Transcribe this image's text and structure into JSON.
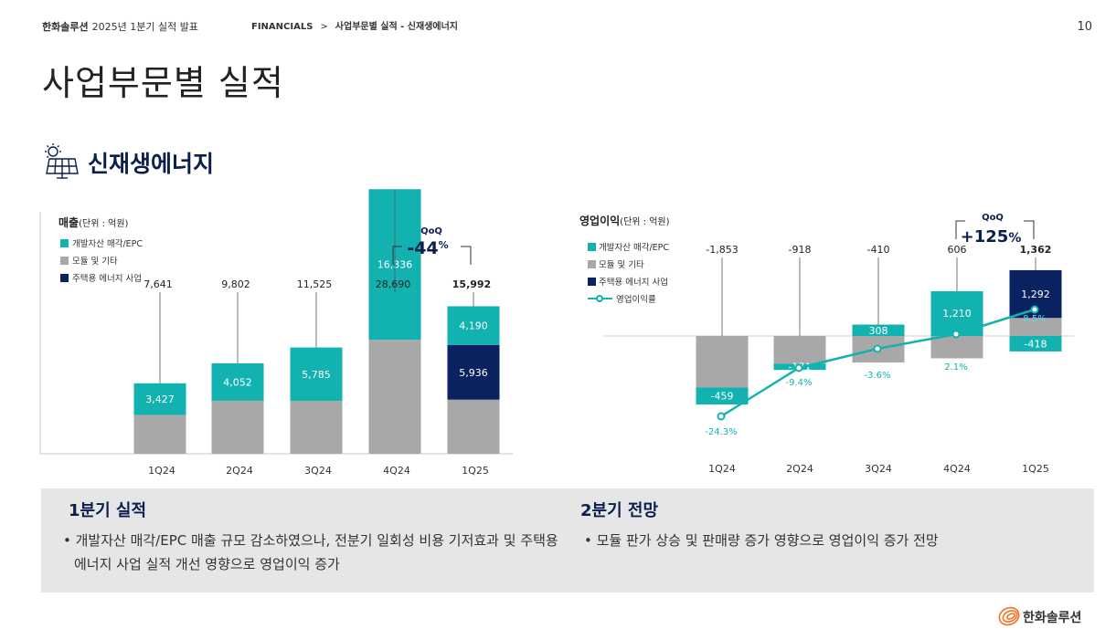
{
  "header": {
    "company": "한화솔루션",
    "subtitle": "2025년 1분기 실적 발표",
    "breadcrumb_1": "FINANCIALS",
    "breadcrumb_sep": ">",
    "breadcrumb_2": "사업부문별 실적 - 신재생에너지",
    "page_number": "10"
  },
  "page_title": "사업부문별 실적",
  "section_title": "신재생에너지",
  "chart_data": [
    {
      "type": "bar",
      "stacked": true,
      "title": "매출",
      "unit": "(단위 : 억원)",
      "categories": [
        "1Q24",
        "2Q24",
        "3Q24",
        "4Q24",
        "1Q25"
      ],
      "totals": [
        "7,641",
        "9,802",
        "11,525",
        "28,690",
        "15,992"
      ],
      "total_values": [
        7641,
        9802,
        11525,
        28690,
        15992
      ],
      "series": [
        {
          "name": "모듈 및 기타",
          "color": "#a8a8a8",
          "values": [
            4214,
            5750,
            5740,
            12354,
            5866
          ]
        },
        {
          "name": "주택용 에너지 사업",
          "color": "#0b2260",
          "values": [
            0,
            0,
            0,
            0,
            5936
          ]
        },
        {
          "name": "개발자산 매각/EPC",
          "color": "#12b2b1",
          "values": [
            3427,
            4052,
            5785,
            16336,
            4190
          ]
        }
      ],
      "bar_labels": {
        "개발자산 매각/EPC": [
          "3,427",
          "4,052",
          "5,785",
          "16,336",
          "4,190"
        ],
        "주택용 에너지 사업": [
          "",
          "",
          "",
          "",
          "5,936"
        ]
      },
      "legend": [
        "개발자산 매각/EPC",
        "모듈 및 기타",
        "주택용 에너지 사업"
      ],
      "qoq": {
        "label": "QoQ",
        "value": "-44",
        "unit": "%"
      }
    },
    {
      "type": "bar",
      "stacked": true,
      "title": "영업이익",
      "unit": "(단위 : 억원)",
      "categories": [
        "1Q24",
        "2Q24",
        "3Q24",
        "4Q24",
        "1Q25"
      ],
      "totals": [
        "-1,853",
        "-918",
        "-410",
        "606",
        "1,362"
      ],
      "series": [
        {
          "name": "모듈 및 기타",
          "color": "#a8a8a8",
          "values": [
            -1394,
            -747,
            -718,
            -604,
            488
          ]
        },
        {
          "name": "주택용 에너지 사업",
          "color": "#0b2260",
          "values": [
            0,
            0,
            0,
            0,
            1292
          ]
        },
        {
          "name": "개발자산 매각/EPC",
          "color": "#12b2b1",
          "values": [
            -459,
            -171,
            308,
            1210,
            -418
          ]
        }
      ],
      "bar_labels": {
        "개발자산 매각/EPC": [
          "-459",
          "-171",
          "308",
          "1,210",
          "-418"
        ],
        "주택용 에너지 사업": [
          "",
          "",
          "",
          "",
          "1,292"
        ]
      },
      "line": {
        "name": "영업이익률",
        "color": "#12b2b1",
        "values": [
          -24.3,
          -9.4,
          -3.6,
          2.1,
          8.5
        ],
        "labels": [
          "-24.3%",
          "-9.4%",
          "-3.6%",
          "2.1%",
          "8.5%"
        ]
      },
      "legend": [
        "개발자산 매각/EPC",
        "모듈 및 기타",
        "주택용 에너지 사업",
        "영업이익률"
      ],
      "qoq": {
        "label": "QoQ",
        "value": "+125",
        "unit": "%"
      }
    }
  ],
  "summary": {
    "left_title": "1분기 실적",
    "left_text": "• 개발자산 매각/EPC 매출 규모 감소하였으나, 전분기 일회성 비용 기저효과 및 주택용 에너지 사업 실적 개선 영향으로 영업이익 증가",
    "right_title": "2분기 전망",
    "right_text": "• 모듈 판가 상승 및 판매량 증가 영향으로 영업이익 증가 전망"
  },
  "footer": {
    "logo_text": "한화솔루션"
  }
}
